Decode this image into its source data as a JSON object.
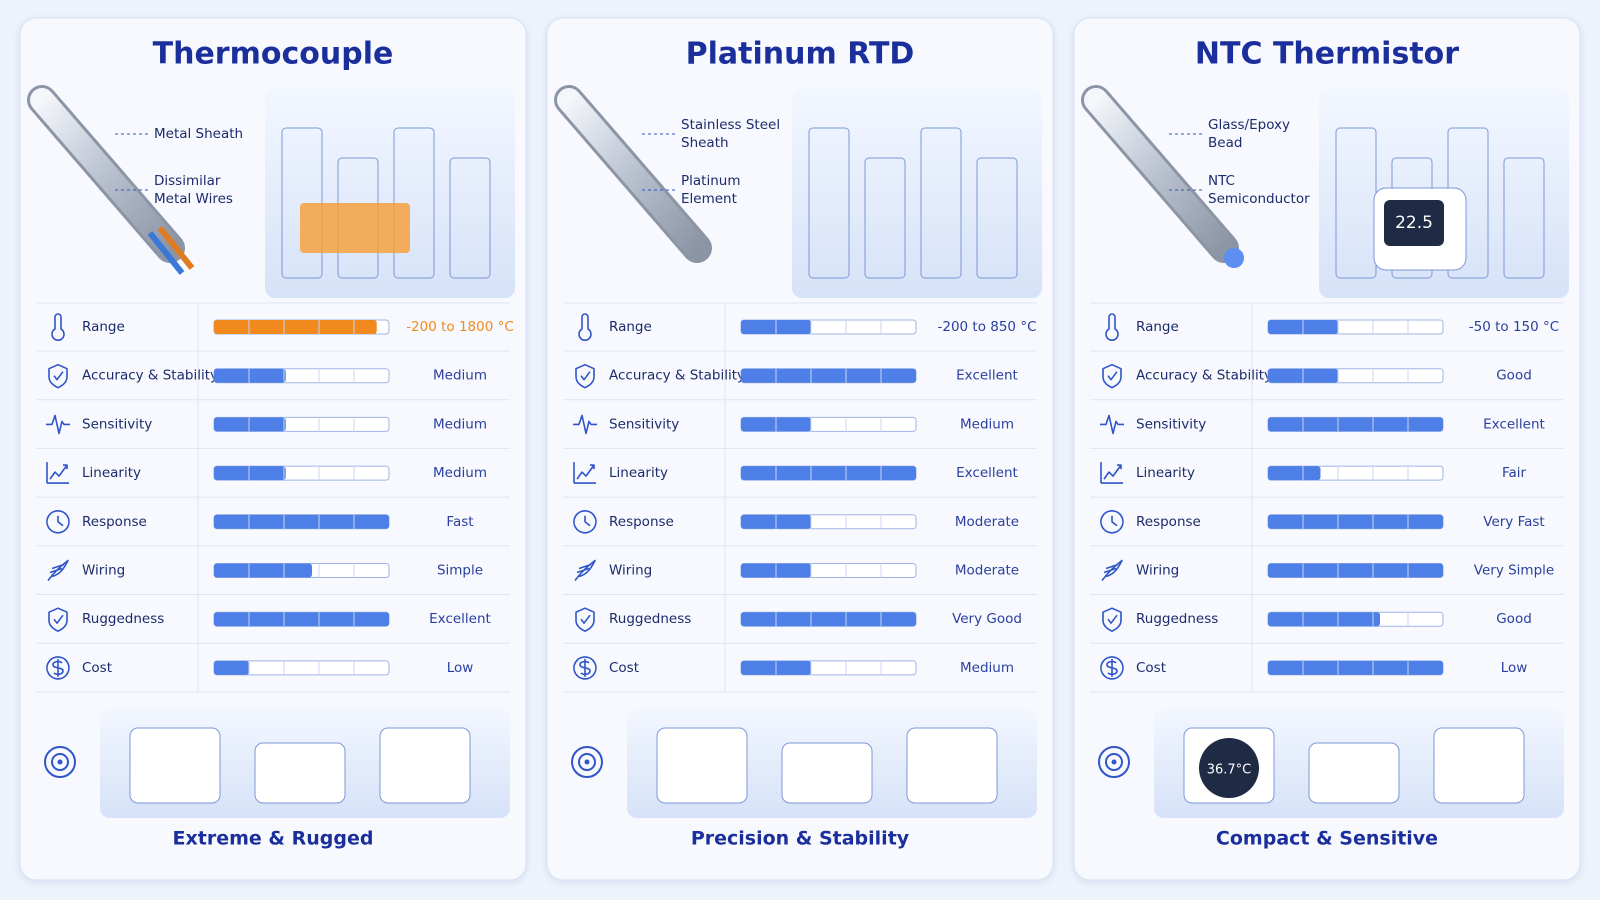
{
  "cards": [
    {
      "title": "Thermocouple",
      "callouts": [
        [
          "Metal Sheath"
        ],
        [
          "Dissimilar",
          "Metal Wires"
        ]
      ],
      "bar_color": "#4d7fe6",
      "rows": [
        {
          "label": "Range",
          "level": 93,
          "value": "-200 to 1800 °C",
          "color": "#f08a1c"
        },
        {
          "label": "Accuracy & Stability",
          "level": 41,
          "value": "Medium"
        },
        {
          "label": "Sensitivity",
          "level": 41,
          "value": "Medium"
        },
        {
          "label": "Linearity",
          "level": 41,
          "value": "Medium"
        },
        {
          "label": "Response",
          "level": 100,
          "value": "Fast"
        },
        {
          "label": "Wiring",
          "level": 56,
          "value": "Simple"
        },
        {
          "label": "Ruggedness",
          "level": 100,
          "value": "Excellent"
        },
        {
          "label": "Cost",
          "level": 20,
          "value": "Low"
        }
      ],
      "footer": "Extreme & Rugged"
    },
    {
      "title": "Platinum RTD",
      "callouts": [
        [
          "Stainless Steel",
          "Sheath"
        ],
        [
          "Platinum",
          "Element"
        ]
      ],
      "bar_color": "#4d7fe6",
      "rows": [
        {
          "label": "Range",
          "level": 40,
          "value": "-200 to 850 °C"
        },
        {
          "label": "Accuracy & Stability",
          "level": 100,
          "value": "Excellent"
        },
        {
          "label": "Sensitivity",
          "level": 40,
          "value": "Medium"
        },
        {
          "label": "Linearity",
          "level": 100,
          "value": "Excellent"
        },
        {
          "label": "Response",
          "level": 40,
          "value": "Moderate"
        },
        {
          "label": "Wiring",
          "level": 40,
          "value": "Moderate"
        },
        {
          "label": "Ruggedness",
          "level": 100,
          "value": "Very Good"
        },
        {
          "label": "Cost",
          "level": 40,
          "value": "Medium"
        }
      ],
      "footer": "Precision & Stability"
    },
    {
      "title": "NTC Thermistor",
      "callouts": [
        [
          "Glass/Epoxy",
          "Bead"
        ],
        [
          "NTC",
          "Semiconductor"
        ]
      ],
      "bar_color": "#4d7fe6",
      "rows": [
        {
          "label": "Range",
          "level": 40,
          "value": "-50 to 150 °C"
        },
        {
          "label": "Accuracy & Stability",
          "level": 40,
          "value": "Good"
        },
        {
          "label": "Sensitivity",
          "level": 100,
          "value": "Excellent"
        },
        {
          "label": "Linearity",
          "level": 30,
          "value": "Fair"
        },
        {
          "label": "Response",
          "level": 100,
          "value": "Very Fast"
        },
        {
          "label": "Wiring",
          "level": 100,
          "value": "Very Simple"
        },
        {
          "label": "Ruggedness",
          "level": 64,
          "value": "Good"
        },
        {
          "label": "Cost",
          "level": 100,
          "value": "Low"
        }
      ],
      "footer": "Compact & Sensitive",
      "display_labels": [
        "22.5",
        "36.7°C"
      ]
    }
  ]
}
